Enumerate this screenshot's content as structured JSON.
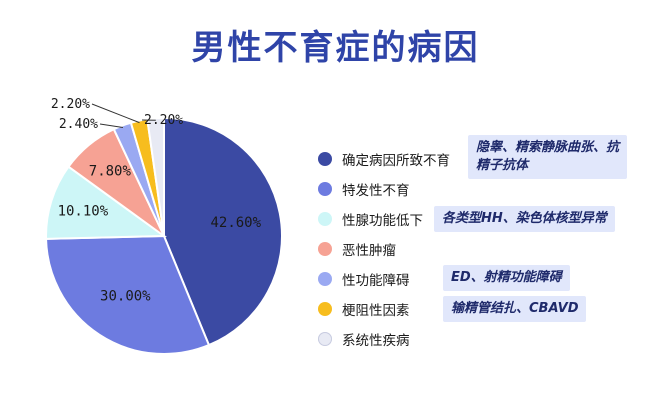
{
  "chart_data": {
    "type": "pie",
    "title": "男性不育症的病因",
    "categories": [
      "确定病因所致不育",
      "特发性不育",
      "性腺功能低下",
      "恶性肿瘤",
      "性功能障碍",
      "梗阻性因素",
      "系统性疾病"
    ],
    "values": [
      42.6,
      30.0,
      10.1,
      7.8,
      2.4,
      2.2,
      2.2
    ],
    "labels": [
      "42.60%",
      "30.00%",
      "10.10%",
      "7.80%",
      "2.40%",
      "2.20%",
      "2.20%"
    ],
    "colors": [
      "#3b4aa3",
      "#6d7be0",
      "#cdf6f7",
      "#f6a294",
      "#9aa9f2",
      "#f7bd1e",
      "#e8eaf4"
    ],
    "legend_position": "right",
    "notes": {
      "0": "隐睾、精索静脉曲张、抗精子抗体",
      "2": "各类型HH、染色体核型异常",
      "4": "ED、射精功能障碍",
      "5": "输精管结扎、CBAVD"
    }
  },
  "colors": {
    "title": "#2f44a8",
    "label_text": "#1a1a1a",
    "note_background": "#e1e7fb",
    "slice_border": "#ffffff"
  }
}
